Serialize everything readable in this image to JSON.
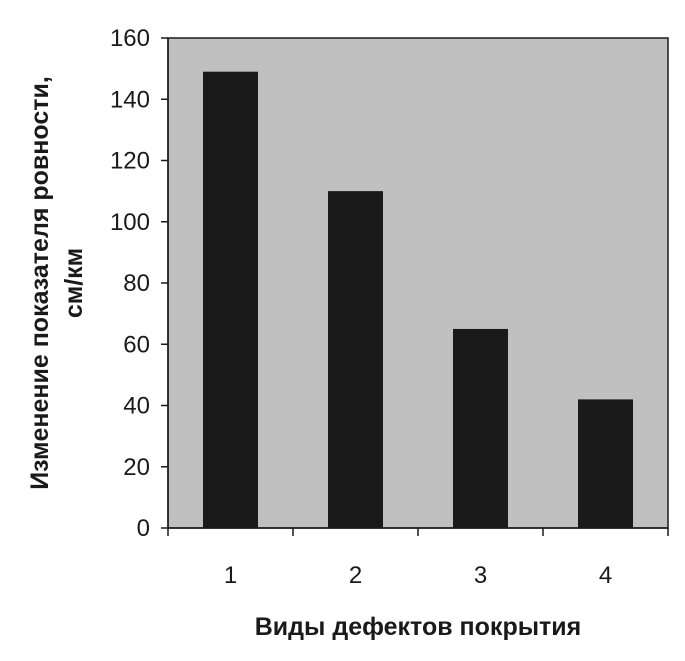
{
  "chart_data": {
    "type": "bar",
    "title": "",
    "xlabel": "Виды дефектов покрытия",
    "ylabel_lines": [
      "Изменение показателя ровности,",
      "см/км"
    ],
    "categories": [
      "1",
      "2",
      "3",
      "4"
    ],
    "values": [
      149,
      110,
      65,
      42
    ],
    "ylim": [
      0,
      160
    ],
    "yticks": [
      0,
      20,
      40,
      60,
      80,
      100,
      120,
      140,
      160
    ],
    "grid": false,
    "legend": "none",
    "plot_background": "#c0c0c0",
    "bar_color": "#1a1a1a"
  }
}
